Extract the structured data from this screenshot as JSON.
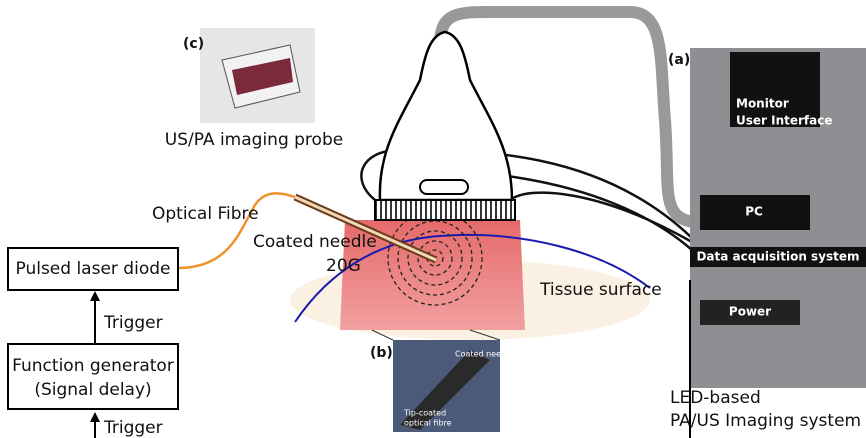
{
  "panel_c": {
    "label": "(c)",
    "caption": "US/PA imaging probe"
  },
  "setup": {
    "optical_fibre": "Optical Fibre",
    "needle": "Coated needle",
    "gauge": "20G",
    "tissue": "Tissue surface"
  },
  "blocks": {
    "laser": "Pulsed laser diode",
    "trigger_1": "Trigger",
    "generator_line_1": "Function generator",
    "generator_line_2": "(Signal delay)",
    "trigger_2": "Trigger"
  },
  "panel_b": {
    "label": "(b)",
    "needle": "Coated needle",
    "fibre_line_1": "Tip-coated",
    "fibre_line_2": "optical fibre"
  },
  "panel_a": {
    "label": "(a)",
    "monitor": "Monitor",
    "ui": "User Interface",
    "pc": "PC",
    "daq": "Data acquisition system",
    "power": "Power",
    "caption_line_1": "LED-based",
    "caption_line_2": "PA/US Imaging system"
  }
}
